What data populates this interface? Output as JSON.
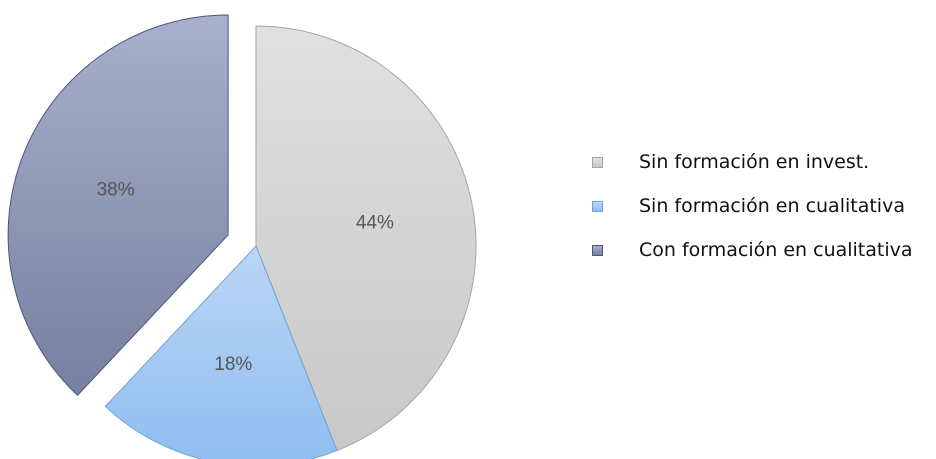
{
  "chart_data": {
    "type": "pie",
    "slices": [
      {
        "label": "Sin formación en invest.",
        "value": 44,
        "display": "44%",
        "color_top": "#e0e0e0",
        "color_bottom": "#c8c8c8",
        "stroke": "#a6a6a6",
        "exploded": false
      },
      {
        "label": "Sin formación en cualitativa",
        "value": 18,
        "display": "18%",
        "color_top": "#bcd6f5",
        "color_bottom": "#8ebdf0",
        "stroke": "#6ea3dd",
        "exploded": false
      },
      {
        "label": "Con formación en cualitativa",
        "value": 38,
        "display": "38%",
        "color_top": "#a7b0cc",
        "color_bottom": "#76809f",
        "stroke": "#4a5680",
        "exploded": true
      }
    ],
    "legend_position": "right"
  }
}
